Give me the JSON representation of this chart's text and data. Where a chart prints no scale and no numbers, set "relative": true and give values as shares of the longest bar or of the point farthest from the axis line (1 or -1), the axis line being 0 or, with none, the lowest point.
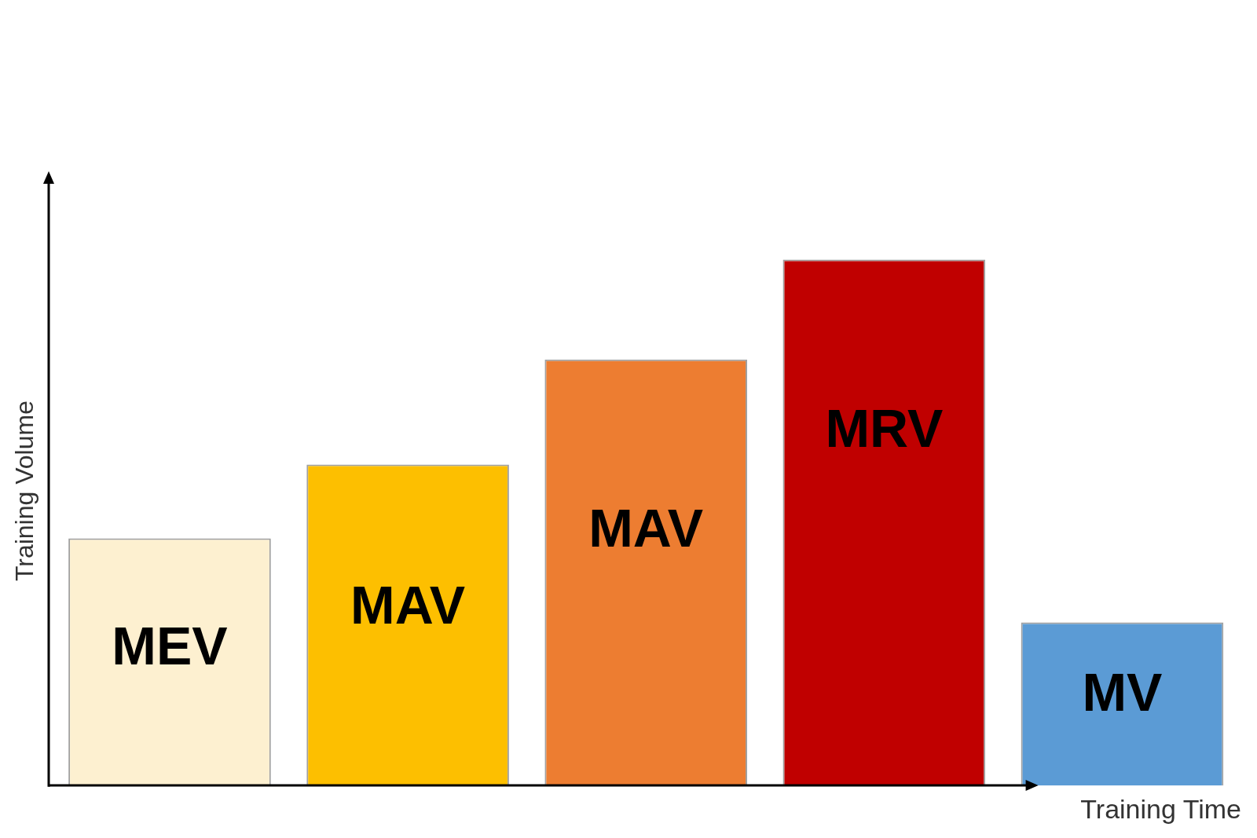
{
  "chart_data": {
    "type": "bar",
    "relative": true,
    "xlabel": "Training Time",
    "ylabel": "Training Volume",
    "categories": [
      "MEV",
      "MAV",
      "MAV",
      "MRV",
      "MV"
    ],
    "values": [
      0.47,
      0.61,
      0.81,
      1,
      0.31
    ],
    "colors": [
      "#fdf0d0",
      "#fdbf00",
      "#ed7d31",
      "#c00000",
      "#5b9bd5"
    ],
    "grid": false,
    "legend": false
  }
}
